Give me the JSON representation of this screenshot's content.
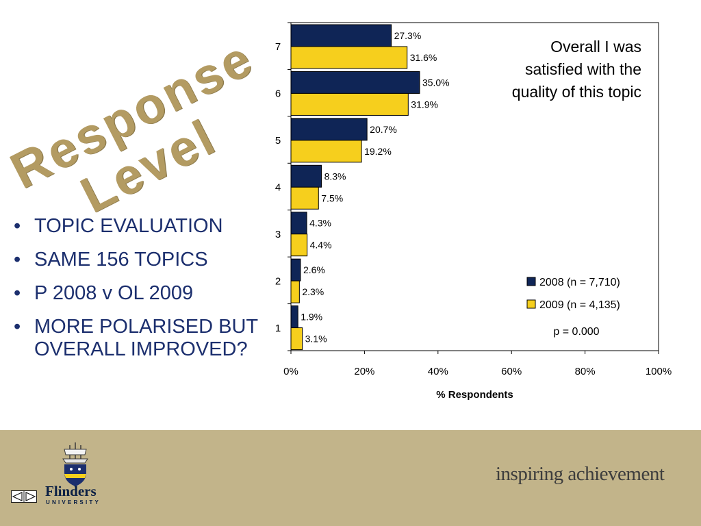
{
  "slide": {
    "wordart_lines": [
      "Response",
      "Level"
    ],
    "bullets": [
      "TOPIC EVALUATION",
      "SAME 156 TOPICS",
      "P 2008 v OL 2009",
      "MORE POLARISED BUT OVERALL IMPROVED?"
    ],
    "footer": {
      "tagline": "inspiring achievement",
      "university_name": "Flinders",
      "university_sub": "UNIVERSITY"
    },
    "colors": {
      "footer": "#c2b48a",
      "wordart": "#b39b62",
      "bullet_text": "#1c2f6e"
    }
  },
  "chart_data": {
    "type": "bar",
    "orientation": "horizontal",
    "title": "Overall I was satisfied with the quality of this topic",
    "xlabel": "% Respondents",
    "ylabel": "",
    "xlim": [
      0,
      100
    ],
    "x_ticks": [
      "0%",
      "20%",
      "40%",
      "60%",
      "80%",
      "100%"
    ],
    "categories": [
      "7",
      "6",
      "5",
      "4",
      "3",
      "2",
      "1"
    ],
    "series": [
      {
        "name": "2008 (n = 7,710)",
        "color": "#0f2556",
        "values": [
          27.3,
          35.0,
          20.7,
          8.3,
          4.3,
          2.6,
          1.9
        ],
        "labels": [
          "27.3%",
          "35.0%",
          "20.7%",
          "8.3%",
          "4.3%",
          "2.6%",
          "1.9%"
        ]
      },
      {
        "name": "2009 (n = 4,135)",
        "color": "#f6cf1d",
        "values": [
          31.6,
          31.9,
          19.2,
          7.5,
          4.4,
          2.3,
          3.1
        ],
        "labels": [
          "31.6%",
          "31.9%",
          "19.2%",
          "7.5%",
          "4.4%",
          "2.3%",
          "3.1%"
        ]
      }
    ],
    "annotation": "p = 0.000",
    "grid": false,
    "legend_position": "bottom-right"
  }
}
